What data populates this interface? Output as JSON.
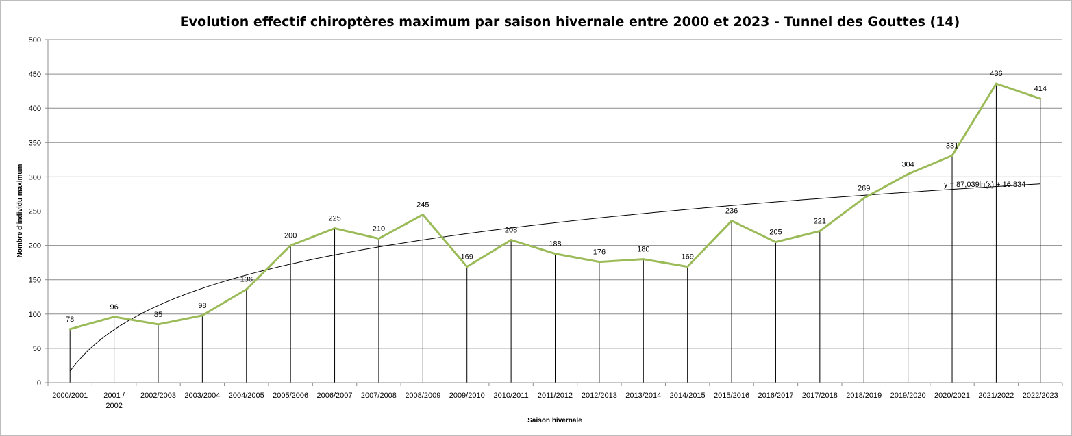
{
  "chart_data": {
    "type": "line",
    "title": "Evolution effectif chiroptères maximum par saison hivernale entre 2000 et 2023 - Tunnel des Gouttes (14)",
    "xlabel": "Saison  hivernale",
    "ylabel": "Nombre d'individu  maximum",
    "ylim": [
      0,
      500
    ],
    "yticks": [
      0,
      50,
      100,
      150,
      200,
      250,
      300,
      350,
      400,
      450,
      500
    ],
    "grid": true,
    "legend": "none",
    "categories": [
      "2000/2001",
      "2001 / 2002",
      "2002/2003",
      "2003/2004",
      "2004/2005",
      "2005/2006",
      "2006/2007",
      "2007/2008",
      "2008/2009",
      "2009/2010",
      "2010/2011",
      "2011/2012",
      "2012/2013",
      "2013/2014",
      "2014/2015",
      "2015/2016",
      "2016/2017",
      "2017/2018",
      "2018/2019",
      "2019/2020",
      "2020/2021",
      "2021/2022",
      "2022/2023"
    ],
    "series": [
      {
        "values": [
          78,
          96,
          85,
          98,
          136,
          200,
          225,
          210,
          245,
          169,
          208,
          188,
          176,
          180,
          169,
          236,
          205,
          221,
          269,
          304,
          331,
          436,
          414
        ],
        "color": "#9BBB59",
        "data_labels": true,
        "drop_lines": true
      }
    ],
    "trendline": {
      "type": "logarithmic",
      "a": 87.039,
      "b": 16.834,
      "equation": "y = 87,039ln(x) + 16,834",
      "color": "#000000"
    }
  }
}
